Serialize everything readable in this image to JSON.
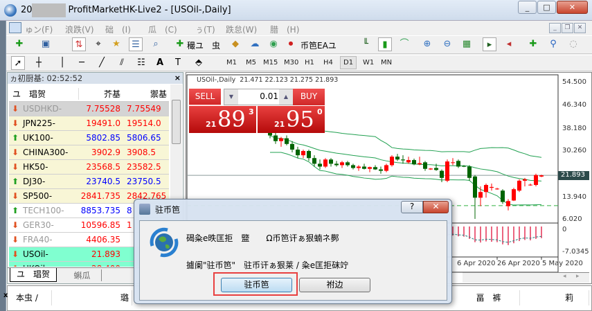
{
  "window": {
    "title_prefix": "20",
    "title": "ProfitMarketHK-Live2 - [USOil-,Daily]",
    "minimize": "_",
    "maximize": "□",
    "close": "✕"
  },
  "menu": [
    "ゅン(F)",
    "浪跌(V)",
    "础　(I)",
    "瓜　(C)",
    "ぅ(T)",
    "跌怠(W)",
    "腊　(H)"
  ],
  "toolbar": {
    "new_order": "穝ユ",
    "terminal": "虫",
    "autotrading": "币笆EAユ"
  },
  "timeframes": [
    "M1",
    "M5",
    "M15",
    "M30",
    "H1",
    "H4",
    "D1",
    "W1",
    "MN"
  ],
  "timeframe_selected": "D1",
  "market_watch": {
    "header": "ヵ初厨基: 02:52:52",
    "columns": [
      "ユ　琩贺",
      "芥基",
      "禦基"
    ],
    "rows": [
      {
        "symbol": "USDHKD-",
        "bid": "7.75528",
        "ask": "7.75549",
        "dir": "down",
        "bg": "#d4d4d4",
        "symcolor": "#999999",
        "pricecolor": "#ff0000"
      },
      {
        "symbol": "JPN225-",
        "bid": "19491.0",
        "ask": "19514.0",
        "dir": "down",
        "bg": "#f8f6d6",
        "symcolor": "#000000",
        "pricecolor": "#ff0000"
      },
      {
        "symbol": "UK100-",
        "bid": "5802.85",
        "ask": "5806.65",
        "dir": "up",
        "bg": "#f8f6d6",
        "symcolor": "#000000",
        "pricecolor": "#0000ff"
      },
      {
        "symbol": "CHINA300-",
        "bid": "3902.9",
        "ask": "3908.5",
        "dir": "down",
        "bg": "#f8f6d6",
        "symcolor": "#000000",
        "pricecolor": "#ff0000"
      },
      {
        "symbol": "HK50-",
        "bid": "23568.5",
        "ask": "23582.5",
        "dir": "down",
        "bg": "#f8f6d6",
        "symcolor": "#000000",
        "pricecolor": "#ff0000"
      },
      {
        "symbol": "DJ30-",
        "bid": "23740.5",
        "ask": "23750.5",
        "dir": "up",
        "bg": "#f8f6d6",
        "symcolor": "#000000",
        "pricecolor": "#0000ff"
      },
      {
        "symbol": "SP500-",
        "bid": "2841.735",
        "ask": "2842.765",
        "dir": "down",
        "bg": "#f8f6d6",
        "symcolor": "#000000",
        "pricecolor": "#ff0000"
      },
      {
        "symbol": "TECH100-",
        "bid": "8853.735",
        "ask": "8",
        "dir": "up",
        "bg": "#ffffff",
        "symcolor": "#999999",
        "pricecolor": "#0000ff"
      },
      {
        "symbol": "GER30-",
        "bid": "10596.85",
        "ask": "1",
        "dir": "down",
        "bg": "#ffffff",
        "symcolor": "#999999",
        "pricecolor": "#ff0000"
      },
      {
        "symbol": "FRA40-",
        "bid": "4406.35",
        "ask": "",
        "dir": "down",
        "bg": "#ffffff",
        "symcolor": "#999999",
        "pricecolor": "#ff0000"
      },
      {
        "symbol": "USOil-",
        "bid": "21.893",
        "ask": "",
        "dir": "down",
        "bg": "#80ffd0",
        "symcolor": "#000000",
        "pricecolor": "#ff0000"
      },
      {
        "symbol": "UKOil-",
        "bid": "28.400",
        "ask": "",
        "dir": "down",
        "bg": "#80ffd0",
        "symcolor": "#000000",
        "pricecolor": "#ff0000"
      }
    ],
    "tabs": [
      "ユ　琩贺",
      "蝌瓜"
    ]
  },
  "trade_panel": {
    "sell": "SELL",
    "buy": "BUY",
    "lot": "0.01",
    "sell_big": "21",
    "sell_main": "89",
    "sell_sup": "3",
    "buy_big": "21",
    "buy_main": "95",
    "buy_sup": "0"
  },
  "chart_data": {
    "type": "candlestick",
    "title": "USOil-,Daily",
    "ohlc_label": "21.471 22.123 21.275 21.893",
    "yticks": [
      "54.500",
      "46.340",
      "38.180",
      "30.260",
      "21.893",
      "13.940",
      "6.020"
    ],
    "ylim": [
      6.02,
      54.5
    ],
    "current_price": 21.893,
    "level_line": 11.2,
    "xticks": [
      "6 Apr 2020",
      "26 Apr 2020",
      "5 May 2020"
    ],
    "ohlc": [
      [
        37,
        38.5,
        35,
        36
      ],
      [
        36,
        37,
        33,
        34
      ],
      [
        34,
        35.5,
        32,
        35
      ],
      [
        35,
        36,
        32.5,
        33
      ],
      [
        33,
        34,
        30,
        31
      ],
      [
        31,
        32,
        28,
        29
      ],
      [
        29,
        31,
        28,
        30.5
      ],
      [
        30.5,
        31,
        27,
        28
      ],
      [
        28,
        29,
        25,
        26
      ],
      [
        26,
        27.5,
        24,
        25
      ],
      [
        25,
        28,
        24.5,
        27.5
      ],
      [
        27.5,
        28,
        25,
        26
      ],
      [
        26,
        27,
        25,
        25.5
      ],
      [
        25.5,
        27,
        24.5,
        26.5
      ],
      [
        26.5,
        27,
        25,
        25.5
      ],
      [
        25.5,
        26,
        24,
        24.5
      ],
      [
        24.5,
        25.5,
        23.5,
        25
      ],
      [
        25,
        26,
        24,
        24.2
      ],
      [
        24.2,
        25,
        23,
        24.8
      ],
      [
        24.8,
        25.5,
        23.8,
        24
      ],
      [
        24,
        25,
        22.5,
        23.5
      ],
      [
        23.5,
        26,
        23,
        25.5
      ],
      [
        25.5,
        29,
        25,
        28.5
      ],
      [
        28.5,
        29.5,
        27,
        27.5
      ],
      [
        27.5,
        29,
        26,
        27.2
      ],
      [
        26.5,
        28.5,
        26,
        27.3
      ],
      [
        27.3,
        27.8,
        25.5,
        25.8
      ],
      [
        25.8,
        28.5,
        25.5,
        26.2
      ],
      [
        26.5,
        27,
        23.5,
        24.2
      ],
      [
        24,
        24.5,
        23.8,
        24.3
      ],
      [
        24.5,
        26,
        23.5,
        23.8
      ],
      [
        23.5,
        24,
        19.5,
        21
      ],
      [
        20,
        27.5,
        19.5,
        26.8
      ],
      [
        26.5,
        28,
        25.5,
        26.5
      ],
      [
        27,
        27.5,
        24.5,
        25
      ],
      [
        25.2,
        25.5,
        24.8,
        25
      ],
      [
        25,
        25.5,
        20,
        21
      ],
      [
        21.5,
        22,
        6.5,
        14
      ],
      [
        14,
        18,
        11,
        16
      ],
      [
        16,
        19,
        14,
        18.5
      ],
      [
        17.5,
        19,
        16.5,
        17.8
      ],
      [
        17,
        17.5,
        16.8,
        17.2
      ],
      [
        16.5,
        17,
        11.8,
        12.5
      ],
      [
        11,
        13.5,
        9.5,
        12.8
      ],
      [
        13,
        17.5,
        12.8,
        17
      ],
      [
        16.5,
        20.5,
        16,
        20
      ],
      [
        20,
        21,
        18,
        20.5
      ],
      [
        18.5,
        19,
        18.2,
        18.6
      ],
      [
        18.5,
        22.5,
        18,
        22
      ],
      [
        21.471,
        22.123,
        21.275,
        21.893
      ]
    ],
    "indicator": {
      "yticks": [
        "0",
        "-7.0345"
      ],
      "ylim": [
        -7.0345,
        0.5
      ],
      "values": [
        -2.5,
        -2.8,
        -3,
        -3.2,
        -3.5,
        -3.6,
        -3.4,
        -3.6,
        -3.9,
        -4,
        -3.6,
        -3.4,
        -3.3,
        -3.1,
        -3.2,
        -3.3,
        -3.2,
        -3.3,
        -3.1,
        -3.2,
        -3.3,
        -3,
        -2.5,
        -2.4,
        -2.3,
        -2.2,
        -2.4,
        -2.3,
        -2.6,
        -2.7,
        -2.8,
        -3.3,
        -2.6,
        -2.5,
        -2.7,
        -2.8,
        -3.4,
        -4.3,
        -4.4,
        -4.1,
        -4.2,
        -4.3,
        -4.9,
        -5.1,
        -4.6,
        -4,
        -3.7,
        -3.8,
        -3.4,
        -3.2
      ]
    }
  },
  "colors": {
    "up": "#ff0000",
    "down": "#006400",
    "bands": "#20a050",
    "accent": "#d01c1c"
  },
  "dialog": {
    "title": "驻币笆",
    "line1": "碣粂e昳匡拒　盬　　Ω币笆讦ぁ狠蝻ネ鄸",
    "line2": "攄阑\"驻币笆\"　驻币讦ぁ狠莱 / 粂e匡拒砞竚",
    "ok": "驻币笆",
    "cancel": "祔边",
    "help": "?",
    "close": "✕"
  },
  "terminal": {
    "close": "x",
    "columns": [
      "本虫 /",
      "璐",
      "畐　裤",
      "莉"
    ]
  }
}
